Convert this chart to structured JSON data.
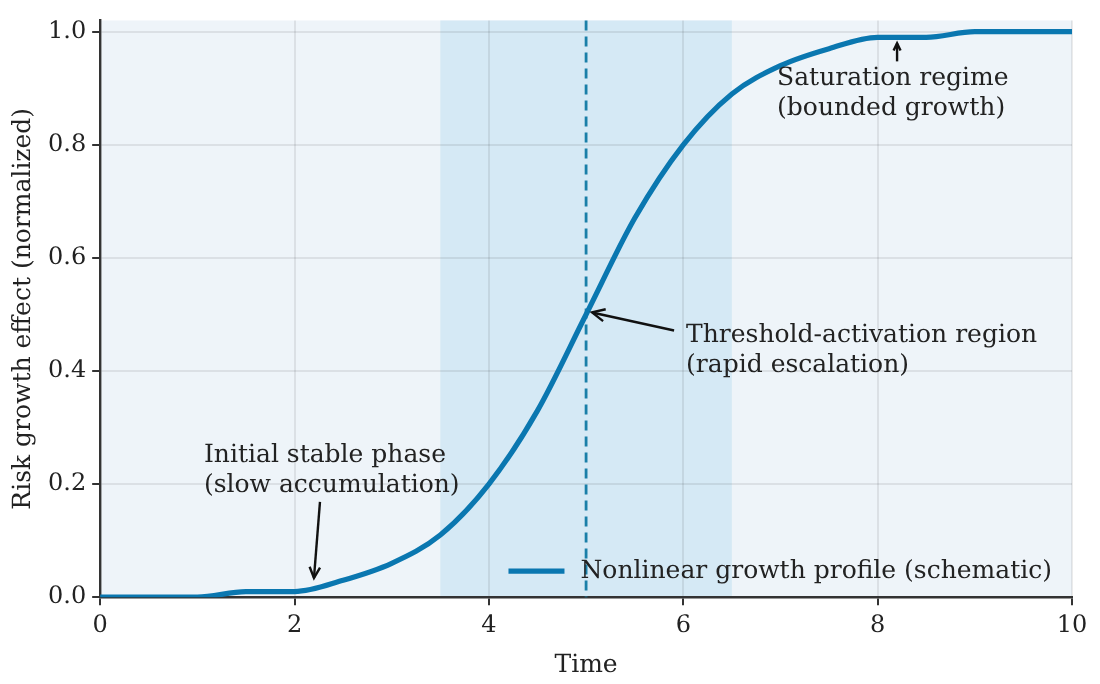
{
  "chart_data": {
    "type": "line",
    "xlabel": "Time",
    "ylabel": "Risk growth effect (normalized)",
    "x": [
      0,
      0.5,
      1,
      1.5,
      2,
      2.5,
      3,
      3.5,
      4,
      4.5,
      5,
      5.5,
      6,
      6.5,
      7,
      7.5,
      8,
      8.5,
      9,
      9.5,
      10
    ],
    "series": [
      {
        "name": "Nonlinear growth profile (schematic)",
        "color": "#0a77b0",
        "values": [
          0.0,
          0.0,
          0.0,
          0.01,
          0.01,
          0.03,
          0.06,
          0.11,
          0.2,
          0.33,
          0.5,
          0.67,
          0.8,
          0.89,
          0.94,
          0.97,
          0.99,
          0.99,
          1.0,
          1.0,
          1.0
        ]
      }
    ],
    "xlim": [
      0,
      10
    ],
    "xticks": [
      0,
      2,
      4,
      6,
      8,
      10
    ],
    "ylim": [
      0,
      1.02
    ],
    "yticks": [
      {
        "value": 0,
        "label": "0.0"
      },
      {
        "value": 0.2,
        "label": "0.2"
      },
      {
        "value": 0.4,
        "label": "0.4"
      },
      {
        "value": 0.6,
        "label": "0.6"
      },
      {
        "value": 0.8,
        "label": "0.8"
      },
      {
        "value": 1,
        "label": "1.0"
      }
    ],
    "bands": [
      {
        "axis": "x",
        "from": 3.5,
        "to": 6.5,
        "color": "#d5e9f5"
      }
    ],
    "ref_lines": [
      {
        "axis": "x",
        "value": 5,
        "color": "#1a7fa8",
        "line_style": "dashed"
      }
    ],
    "annotations": [
      {
        "text": "Initial stable phase\n(slow accumulation)",
        "x": 2.2,
        "y": 0.02
      },
      {
        "text": "Threshold-activation region\n(rapid escalation)",
        "x": 5,
        "y": 0.5
      },
      {
        "text": "Saturation regime\n(bounded growth)",
        "x": 8.2,
        "y": 0.99
      }
    ],
    "grid": true,
    "legend": "bottom right",
    "marker": "none",
    "line_style": "solid"
  }
}
